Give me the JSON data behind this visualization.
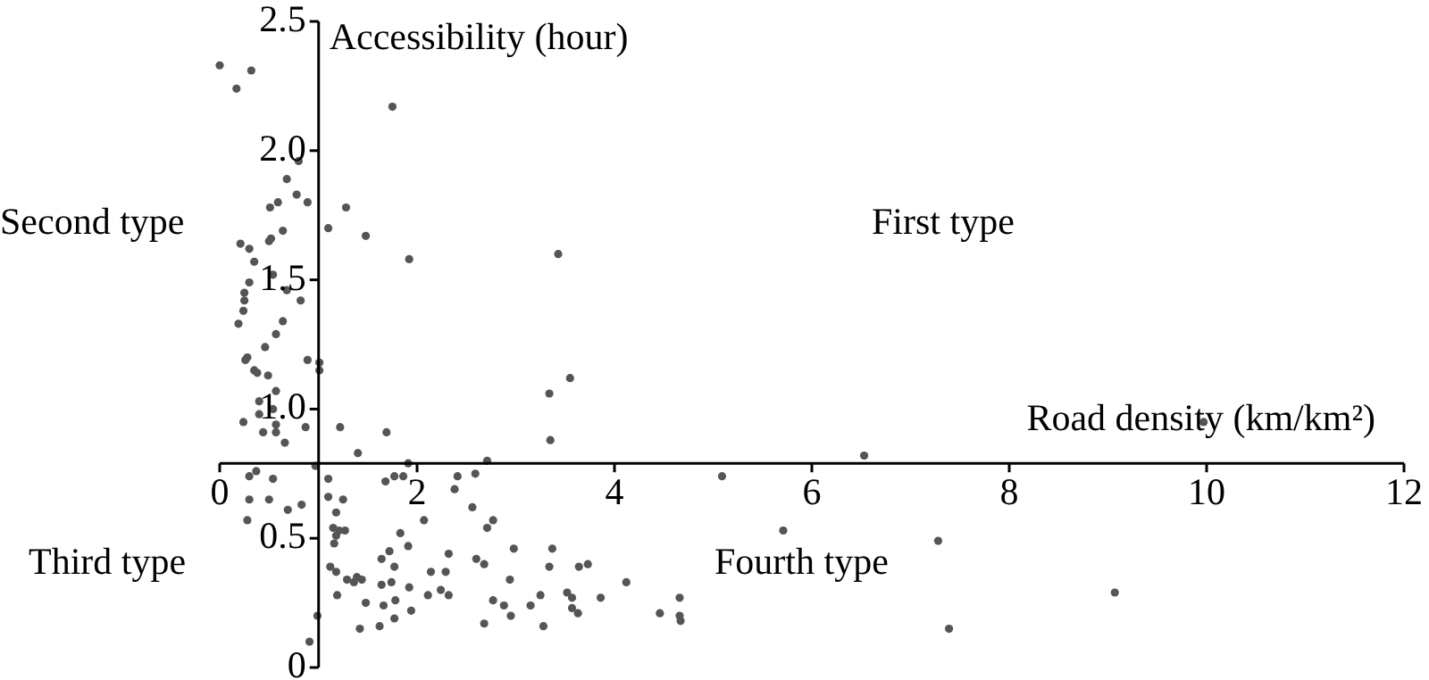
{
  "chart_data": {
    "type": "scatter",
    "xlabel": "Road density (km/km²)",
    "ylabel": "Accessibility (hour)",
    "annotations": [
      "First type",
      "Second type",
      "Third type",
      "Fourth type"
    ],
    "xlim": [
      0,
      12
    ],
    "ylim": [
      0,
      2.5
    ],
    "xticks": [
      0,
      2,
      4,
      6,
      8,
      10,
      12
    ],
    "yticks": [
      0,
      0.5,
      {
        "value": 1,
        "label": "1.0"
      },
      1.5,
      {
        "value": 2,
        "label": "2.0"
      },
      2.5
    ],
    "marker": "circle",
    "series": [
      {
        "color": "#555555",
        "x": [
          0.0,
          0.17,
          0.32,
          1.75,
          0.8,
          0.68,
          0.78,
          0.89,
          0.59,
          0.51,
          1.28,
          1.1,
          1.48,
          0.64,
          0.52,
          0.5,
          0.21,
          0.3,
          0.35,
          1.92,
          0.54,
          0.3,
          0.68,
          0.25,
          0.25,
          0.82,
          0.24,
          0.19,
          0.64,
          0.57,
          3.43,
          0.46,
          0.28,
          0.26,
          0.89,
          1.01,
          0.35,
          0.38,
          0.49,
          1.01,
          0.57,
          0.4,
          0.54,
          0.4,
          0.24,
          0.57,
          0.87,
          0.44,
          0.57,
          0.66,
          1.22,
          1.69,
          1.4,
          0.97,
          1.91,
          2.71,
          3.55,
          3.34,
          3.35,
          6.53,
          5.09,
          0.37,
          0.3,
          0.54,
          1.1,
          1.68,
          1.77,
          1.86,
          2.41,
          2.59,
          2.38,
          0.3,
          0.5,
          1.1,
          1.25,
          0.83,
          0.69,
          1.18,
          0.28,
          2.07,
          2.56,
          2.77,
          2.71,
          1.15,
          1.21,
          1.27,
          1.18,
          1.83,
          1.16,
          2.98,
          1.91,
          1.72,
          2.32,
          1.64,
          2.6,
          2.68,
          1.12,
          1.77,
          1.18,
          2.94,
          1.39,
          1.44,
          1.29,
          1.36,
          1.64,
          1.74,
          1.92,
          2.14,
          2.29,
          2.24,
          2.32,
          2.11,
          2.77,
          2.88,
          2.95,
          3.15,
          1.19,
          1.48,
          1.78,
          1.66,
          1.94,
          1.77,
          1.62,
          1.42,
          2.68,
          0.99,
          0.91,
          3.37,
          3.34,
          3.64,
          3.73,
          4.12,
          3.25,
          3.28,
          3.52,
          3.57,
          3.57,
          3.63,
          3.86,
          4.46,
          4.66,
          4.66,
          4.67,
          5.71,
          7.28,
          7.39,
          9.07,
          9.97
        ],
        "values": [
          2.33,
          2.24,
          2.31,
          2.17,
          1.96,
          1.89,
          1.83,
          1.8,
          1.8,
          1.78,
          1.78,
          1.7,
          1.67,
          1.69,
          1.66,
          1.65,
          1.64,
          1.62,
          1.57,
          1.58,
          1.52,
          1.49,
          1.46,
          1.45,
          1.42,
          1.42,
          1.38,
          1.33,
          1.34,
          1.29,
          1.6,
          1.24,
          1.2,
          1.19,
          1.19,
          1.18,
          1.15,
          1.14,
          1.13,
          1.15,
          1.07,
          1.03,
          1.0,
          0.98,
          0.95,
          0.94,
          0.93,
          0.91,
          0.91,
          0.87,
          0.93,
          0.91,
          0.83,
          0.78,
          0.79,
          0.8,
          1.12,
          1.06,
          0.88,
          0.82,
          0.74,
          0.76,
          0.74,
          0.73,
          0.73,
          0.72,
          0.74,
          0.74,
          0.74,
          0.75,
          0.69,
          0.65,
          0.65,
          0.66,
          0.65,
          0.63,
          0.61,
          0.6,
          0.57,
          0.57,
          0.62,
          0.57,
          0.54,
          0.54,
          0.53,
          0.53,
          0.51,
          0.52,
          0.48,
          0.46,
          0.47,
          0.45,
          0.44,
          0.42,
          0.42,
          0.4,
          0.39,
          0.39,
          0.37,
          0.34,
          0.35,
          0.34,
          0.34,
          0.33,
          0.32,
          0.33,
          0.31,
          0.37,
          0.37,
          0.3,
          0.28,
          0.28,
          0.26,
          0.24,
          0.2,
          0.24,
          0.28,
          0.25,
          0.26,
          0.24,
          0.22,
          0.19,
          0.16,
          0.15,
          0.17,
          0.2,
          0.1,
          0.46,
          0.39,
          0.39,
          0.4,
          0.33,
          0.28,
          0.16,
          0.29,
          0.27,
          0.23,
          0.21,
          0.27,
          0.21,
          0.27,
          0.2,
          0.18,
          0.53,
          0.49,
          0.15,
          0.29,
          0.95
        ]
      }
    ]
  }
}
